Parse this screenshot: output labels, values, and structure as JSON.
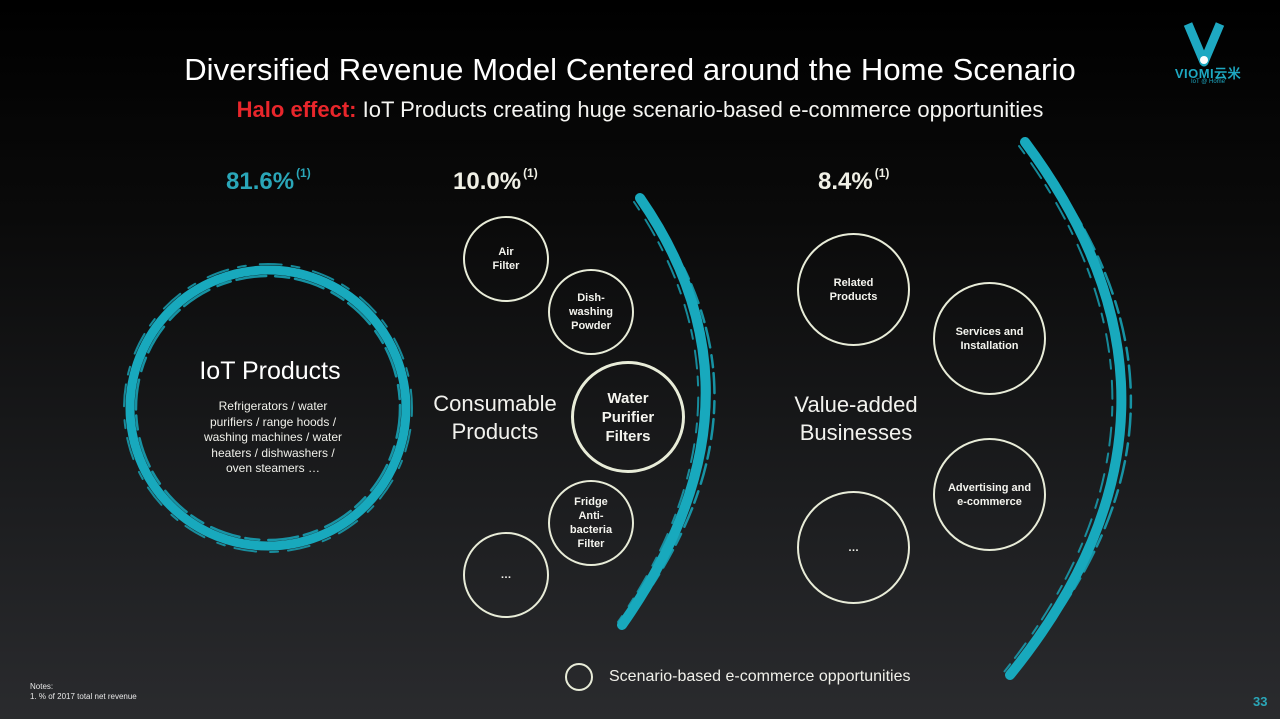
{
  "title": "Diversified Revenue Model Centered around the Home Scenario",
  "subtitle": {
    "highlight": "Halo effect:",
    "text": "IoT Products creating huge scenario-based e-commerce opportunities"
  },
  "logo": {
    "brand": "VIOMI云米",
    "tagline": "IoT @ Home"
  },
  "segments": {
    "iot": {
      "percent": "81.6%",
      "note": "(1)",
      "label": "IoT Products",
      "description": [
        "Refrigerators / water",
        "purifiers / range hoods /",
        "washing machines / water",
        "heaters / dishwashers /",
        "oven steamers …"
      ]
    },
    "consumable": {
      "percent": "10.0%",
      "note": "(1)",
      "label": [
        "Consumable",
        "Products"
      ],
      "items": {
        "air_filter": [
          "Air",
          "Filter"
        ],
        "dishwashing": [
          "Dish-",
          "washing",
          "Powder"
        ],
        "water_filters": [
          "Water",
          "Purifier",
          "Filters"
        ],
        "fridge_filter": [
          "Fridge",
          "Anti-",
          "bacteria",
          "Filter"
        ],
        "more": "…"
      }
    },
    "value_added": {
      "percent": "8.4%",
      "note": "(1)",
      "label": [
        "Value-added",
        "Businesses"
      ],
      "items": {
        "related": [
          "Related",
          "Products"
        ],
        "services": [
          "Services and",
          "Installation"
        ],
        "advertising": [
          "Advertising and",
          "e-commerce"
        ],
        "more": "…"
      }
    }
  },
  "legend": "Scenario-based e-commerce opportunities",
  "notes": {
    "heading": "Notes:",
    "line1": "1. % of 2017 total net revenue"
  },
  "page_number": "33",
  "colors": {
    "accent": "#2aa6b8",
    "halo": "#e8262b",
    "bubble": "#e8ecd8"
  }
}
